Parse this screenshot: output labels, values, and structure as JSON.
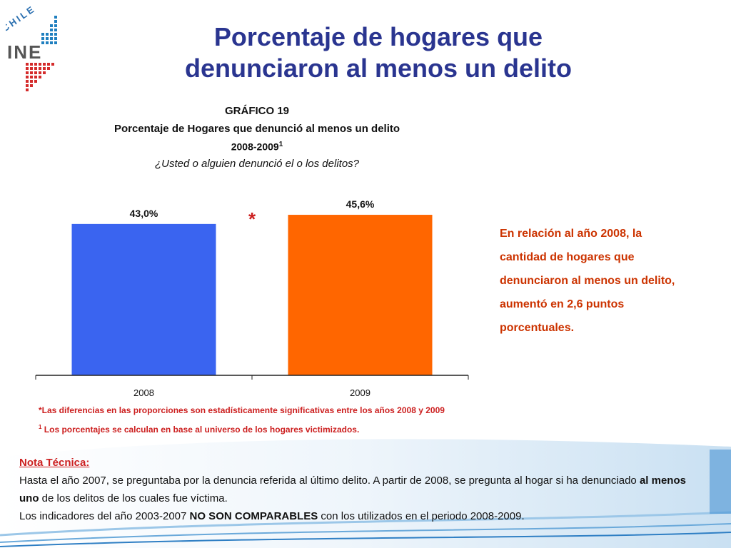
{
  "header": {
    "title_line1": "Porcentaje de hogares que",
    "title_line2": "denunciaron al menos un delito",
    "logo_text": "INE",
    "logo_country": "CHILE"
  },
  "chart_header": {
    "caption": "GRÁFICO 19",
    "title": "Porcentaje de Hogares que denunció al menos un delito",
    "years": "2008-2009",
    "years_sup": "1",
    "question": "¿Usted o alguien denunció el o los delitos?"
  },
  "chart_data": {
    "type": "bar",
    "categories": [
      "2008",
      "2009"
    ],
    "values": [
      43.0,
      45.6
    ],
    "value_labels": [
      "43,0%",
      "45,6%"
    ],
    "colors": [
      "#3a64f0",
      "#ff6600"
    ],
    "significance_marker": "*",
    "title": "Porcentaje de Hogares que denunció al menos un delito",
    "xlabel": "",
    "ylabel": "",
    "ylim": [
      0,
      60
    ],
    "grid": false,
    "legend": "none"
  },
  "side_note": "En relación al año 2008, la cantidad de hogares que denunciaron al menos un delito, aumentó en 2,6 puntos porcentuales.",
  "footnotes": {
    "significance": "*Las diferencias en las proporciones son estadísticamente significativas entre los años 2008 y 2009",
    "base_marker": "1",
    "base": " Los porcentajes se calculan en base al universo de los hogares victimizados."
  },
  "nota": {
    "title": "Nota Técnica:",
    "p1_a": "Hasta el año 2007, se preguntaba por la denuncia referida al último delito. A partir de 2008, se pregunta al hogar si ha denunciado ",
    "p1_bold": "al menos uno",
    "p1_b": " de los delitos de los cuales fue víctima.",
    "p2_a": "Los indicadores del año 2003-2007 ",
    "p2_bold": "NO SON COMPARABLES",
    "p2_b": " con los utilizados en el periodo 2008-2009."
  },
  "colors": {
    "title": "#2a3590",
    "accent_red": "#cc1f1f",
    "side_note": "#cc3300",
    "logo_blue": "#1f7fbf",
    "logo_red": "#d42b2b"
  }
}
